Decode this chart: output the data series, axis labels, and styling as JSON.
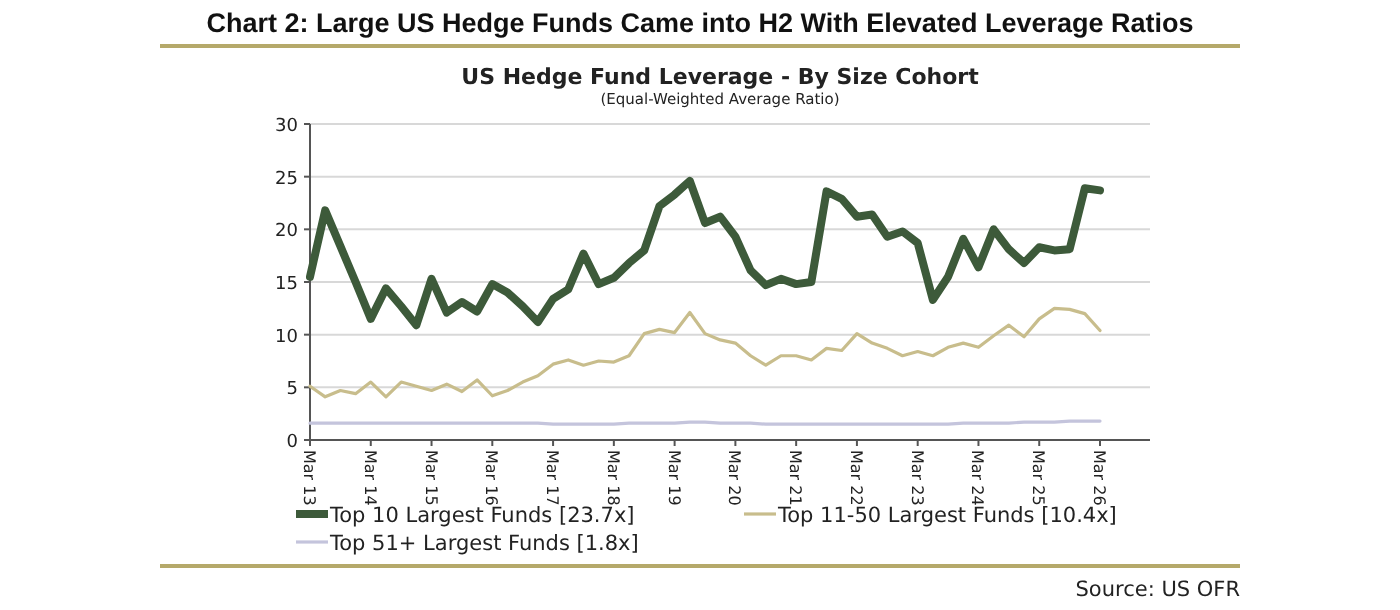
{
  "chart_data": {
    "type": "line",
    "title": "Chart 2: Large US Hedge Funds Came into H2 With Elevated Leverage Ratios",
    "subtitle": "US Hedge Fund Leverage - By Size Cohort",
    "annotations": [
      "(Equal-Weighted Average Ratio)",
      "Source: US OFR"
    ],
    "categories": [
      "Mar 13",
      null,
      null,
      null,
      "Mar 14",
      null,
      null,
      null,
      "Mar 15",
      null,
      null,
      null,
      "Mar 16",
      null,
      null,
      null,
      "Mar 17",
      null,
      null,
      null,
      "Mar 18",
      null,
      null,
      null,
      "Mar 19",
      null,
      null,
      null,
      "Mar 20",
      null,
      null,
      null,
      "Mar 21",
      null,
      null,
      null,
      "Mar 22",
      null,
      null,
      null,
      "Mar 23",
      null,
      null,
      null,
      "Mar 24",
      null,
      null,
      null,
      "Mar 25",
      null,
      null,
      null,
      "Mar 26"
    ],
    "series": [
      {
        "name": "Top 10 Largest Funds [23.7x]",
        "color": "#3d5a3a",
        "values": [
          15.5,
          21.8,
          18.4,
          15,
          11.5,
          14.4,
          12.7,
          10.9,
          15.3,
          12.1,
          13.1,
          12.2,
          14.8,
          14,
          12.7,
          11.2,
          13.4,
          14.3,
          17.7,
          14.8,
          15.4,
          16.8,
          18,
          22.2,
          23.3,
          24.6,
          20.6,
          21.2,
          19.3,
          16.1,
          14.7,
          15.3,
          14.8,
          15,
          23.6,
          22.9,
          21.2,
          21.4,
          19.3,
          19.8,
          18.7,
          13.3,
          15.5,
          19.1,
          16.4,
          20,
          18.1,
          16.8,
          18.3,
          18,
          18.1,
          23.9,
          23.7
        ]
      },
      {
        "name": "Top 11-50 Largest Funds [10.4x]",
        "color": "#c8bd8c",
        "values": [
          5.1,
          4.1,
          4.7,
          4.4,
          5.5,
          4.1,
          5.5,
          5.1,
          4.7,
          5.3,
          4.6,
          5.7,
          4.2,
          4.7,
          5.5,
          6.1,
          7.2,
          7.6,
          7.1,
          7.5,
          7.4,
          8,
          10.1,
          10.5,
          10.2,
          12.1,
          10.1,
          9.5,
          9.2,
          8,
          7.1,
          8,
          8,
          7.6,
          8.7,
          8.5,
          10.1,
          9.2,
          8.7,
          8,
          8.4,
          8,
          8.8,
          9.2,
          8.8,
          9.9,
          10.9,
          9.8,
          11.5,
          12.5,
          12.4,
          12,
          10.4
        ]
      },
      {
        "name": "Top 51+ Largest Funds [1.8x]",
        "color": "#c4c4dc",
        "values": [
          1.6,
          1.6,
          1.6,
          1.6,
          1.6,
          1.6,
          1.6,
          1.6,
          1.6,
          1.6,
          1.6,
          1.6,
          1.6,
          1.6,
          1.6,
          1.6,
          1.5,
          1.5,
          1.5,
          1.5,
          1.5,
          1.6,
          1.6,
          1.6,
          1.6,
          1.7,
          1.7,
          1.6,
          1.6,
          1.6,
          1.5,
          1.5,
          1.5,
          1.5,
          1.5,
          1.5,
          1.5,
          1.5,
          1.5,
          1.5,
          1.5,
          1.5,
          1.5,
          1.6,
          1.6,
          1.6,
          1.6,
          1.7,
          1.7,
          1.7,
          1.8,
          1.8,
          1.8
        ]
      }
    ],
    "ylim": [
      0,
      30
    ],
    "yticks": [
      0,
      5,
      10,
      15,
      20,
      25,
      30
    ],
    "grid": "y",
    "legend": "bottom",
    "marker": "none",
    "line_style": "solid"
  }
}
